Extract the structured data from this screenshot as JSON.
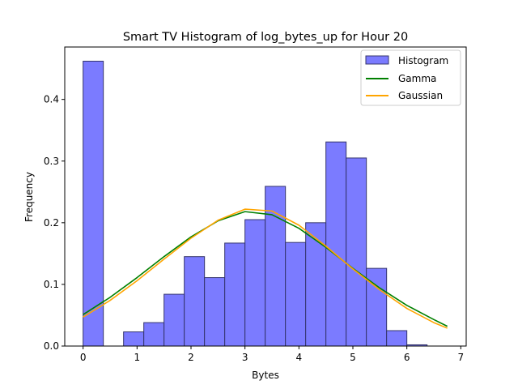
{
  "chart_data": {
    "type": "bar",
    "title": "Smart TV Histogram of log_bytes_up for Hour 20",
    "xlabel": "Bytes",
    "ylabel": "Frequency",
    "xlim": [
      -0.34,
      7.1
    ],
    "ylim": [
      0,
      0.485
    ],
    "x_ticks": [
      0,
      1,
      2,
      3,
      4,
      5,
      6,
      7
    ],
    "y_ticks": [
      0.0,
      0.1,
      0.2,
      0.3,
      0.4
    ],
    "y_tick_labels": [
      "0.0",
      "0.1",
      "0.2",
      "0.3",
      "0.4"
    ],
    "grid": false,
    "legend_position": "top-right",
    "bin_width": 0.375,
    "bins": [
      {
        "x_start": 0.0,
        "value": 0.462
      },
      {
        "x_start": 0.375,
        "value": 0.0
      },
      {
        "x_start": 0.75,
        "value": 0.023
      },
      {
        "x_start": 1.125,
        "value": 0.038
      },
      {
        "x_start": 1.5,
        "value": 0.084
      },
      {
        "x_start": 1.875,
        "value": 0.145
      },
      {
        "x_start": 2.25,
        "value": 0.111
      },
      {
        "x_start": 2.625,
        "value": 0.167
      },
      {
        "x_start": 3.0,
        "value": 0.205
      },
      {
        "x_start": 3.375,
        "value": 0.259
      },
      {
        "x_start": 3.75,
        "value": 0.168
      },
      {
        "x_start": 4.125,
        "value": 0.2
      },
      {
        "x_start": 4.5,
        "value": 0.331
      },
      {
        "x_start": 4.875,
        "value": 0.305
      },
      {
        "x_start": 5.25,
        "value": 0.126
      },
      {
        "x_start": 5.625,
        "value": 0.025
      },
      {
        "x_start": 6.0,
        "value": 0.002
      }
    ],
    "series": [
      {
        "name": "Histogram",
        "kind": "histogram",
        "color": "#7b7bff",
        "edge_color": "#35356e"
      },
      {
        "name": "Gamma",
        "kind": "line",
        "color": "#008000",
        "points": [
          [
            0.0,
            0.051
          ],
          [
            0.5,
            0.079
          ],
          [
            1.0,
            0.111
          ],
          [
            1.5,
            0.145
          ],
          [
            2.0,
            0.177
          ],
          [
            2.5,
            0.203
          ],
          [
            3.0,
            0.218
          ],
          [
            3.5,
            0.213
          ],
          [
            4.0,
            0.191
          ],
          [
            4.5,
            0.16
          ],
          [
            5.0,
            0.126
          ],
          [
            5.5,
            0.094
          ],
          [
            6.0,
            0.066
          ],
          [
            6.5,
            0.043
          ],
          [
            6.75,
            0.032
          ]
        ]
      },
      {
        "name": "Gaussian",
        "kind": "line",
        "color": "#ffa500",
        "points": [
          [
            0.0,
            0.047
          ],
          [
            0.5,
            0.074
          ],
          [
            1.0,
            0.106
          ],
          [
            1.5,
            0.141
          ],
          [
            2.0,
            0.175
          ],
          [
            2.5,
            0.204
          ],
          [
            3.0,
            0.222
          ],
          [
            3.5,
            0.219
          ],
          [
            4.0,
            0.196
          ],
          [
            4.5,
            0.162
          ],
          [
            5.0,
            0.125
          ],
          [
            5.5,
            0.091
          ],
          [
            6.0,
            0.061
          ],
          [
            6.5,
            0.038
          ],
          [
            6.75,
            0.029
          ]
        ]
      }
    ]
  }
}
